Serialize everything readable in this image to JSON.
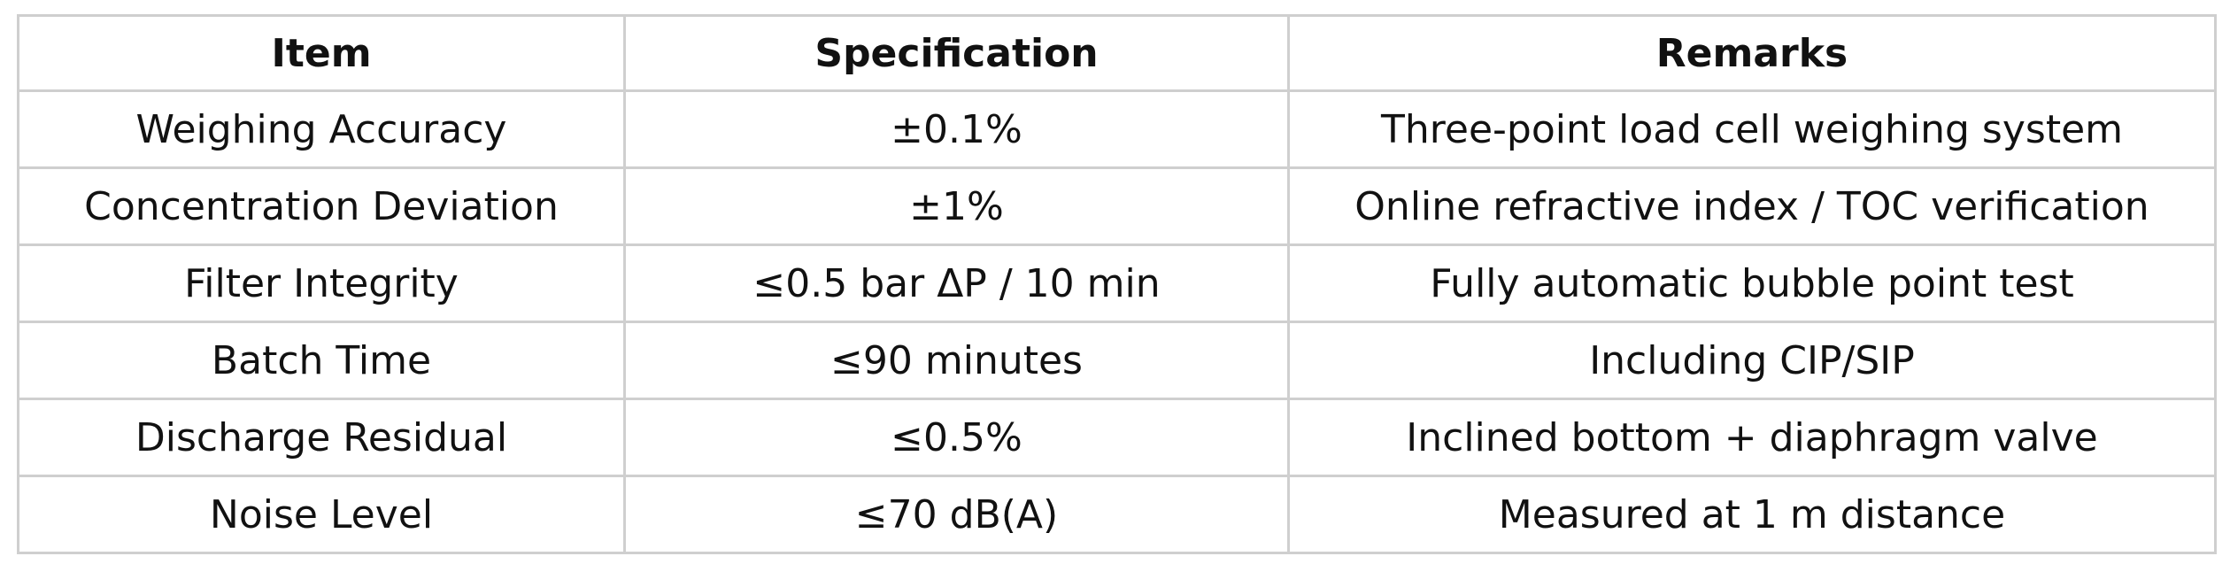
{
  "table": {
    "headers": [
      "Item",
      "Specification",
      "Remarks"
    ],
    "rows": [
      [
        "Weighing Accuracy",
        "±0.1%",
        "Three-point load cell weighing system"
      ],
      [
        "Concentration Deviation",
        "±1%",
        "Online refractive index / TOC verification"
      ],
      [
        "Filter Integrity",
        "≤0.5 bar ΔP / 10 min",
        "Fully automatic bubble point test"
      ],
      [
        "Batch Time",
        "≤90 minutes",
        "Including CIP/SIP"
      ],
      [
        "Discharge Residual",
        "≤0.5%",
        "Inclined bottom + diaphragm valve"
      ],
      [
        "Noise Level",
        "≤70 dB(A)",
        "Measured at 1 m distance"
      ]
    ]
  }
}
